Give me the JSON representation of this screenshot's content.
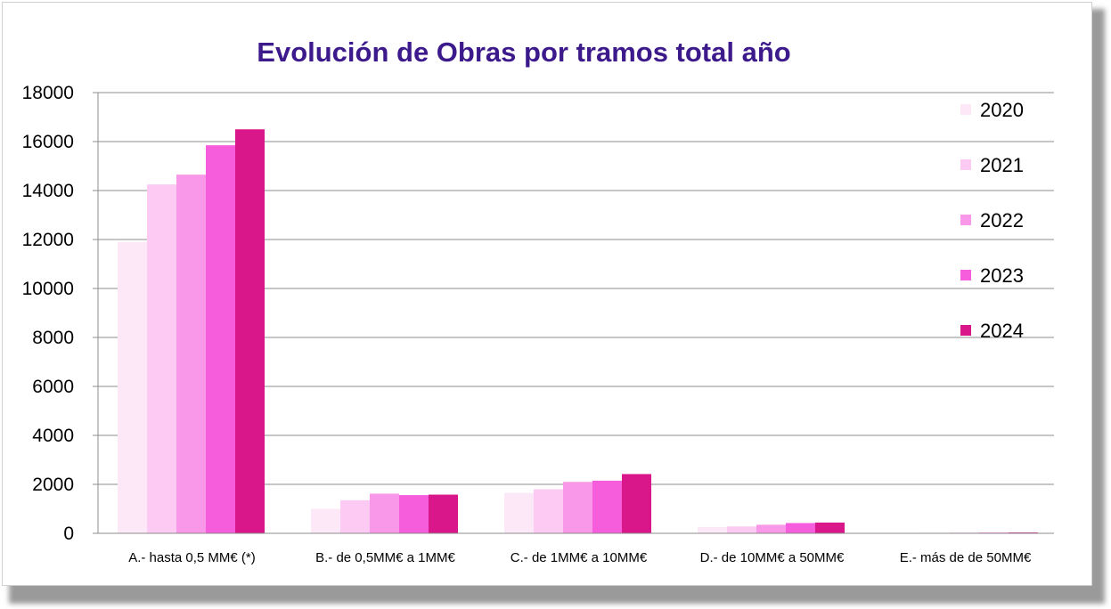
{
  "chart_data": {
    "type": "bar",
    "title": "Evolución de Obras por tramos total año",
    "xlabel": "",
    "ylabel": "",
    "ylim": [
      0,
      18000
    ],
    "yticks": [
      0,
      2000,
      4000,
      6000,
      8000,
      10000,
      12000,
      14000,
      16000,
      18000
    ],
    "grid": true,
    "legend_position": "right",
    "categories": [
      "A.- hasta 0,5 MM€  (*)",
      "B.- de 0,5MM€ a 1MM€",
      "C.- de 1MM€ a 10MM€",
      "D.- de 10MM€ a 50MM€",
      "E.- más de de 50MM€"
    ],
    "series": [
      {
        "name": "2020",
        "color": "#fde8f8",
        "values": [
          11900,
          1000,
          1650,
          260,
          15
        ]
      },
      {
        "name": "2021",
        "color": "#fccaf3",
        "values": [
          14250,
          1350,
          1800,
          280,
          20
        ]
      },
      {
        "name": "2022",
        "color": "#f998e8",
        "values": [
          14650,
          1620,
          2100,
          350,
          25
        ]
      },
      {
        "name": "2023",
        "color": "#f65ddc",
        "values": [
          15850,
          1560,
          2150,
          420,
          30
        ]
      },
      {
        "name": "2024",
        "color": "#d9168a",
        "values": [
          16500,
          1580,
          2420,
          440,
          35
        ]
      }
    ]
  }
}
